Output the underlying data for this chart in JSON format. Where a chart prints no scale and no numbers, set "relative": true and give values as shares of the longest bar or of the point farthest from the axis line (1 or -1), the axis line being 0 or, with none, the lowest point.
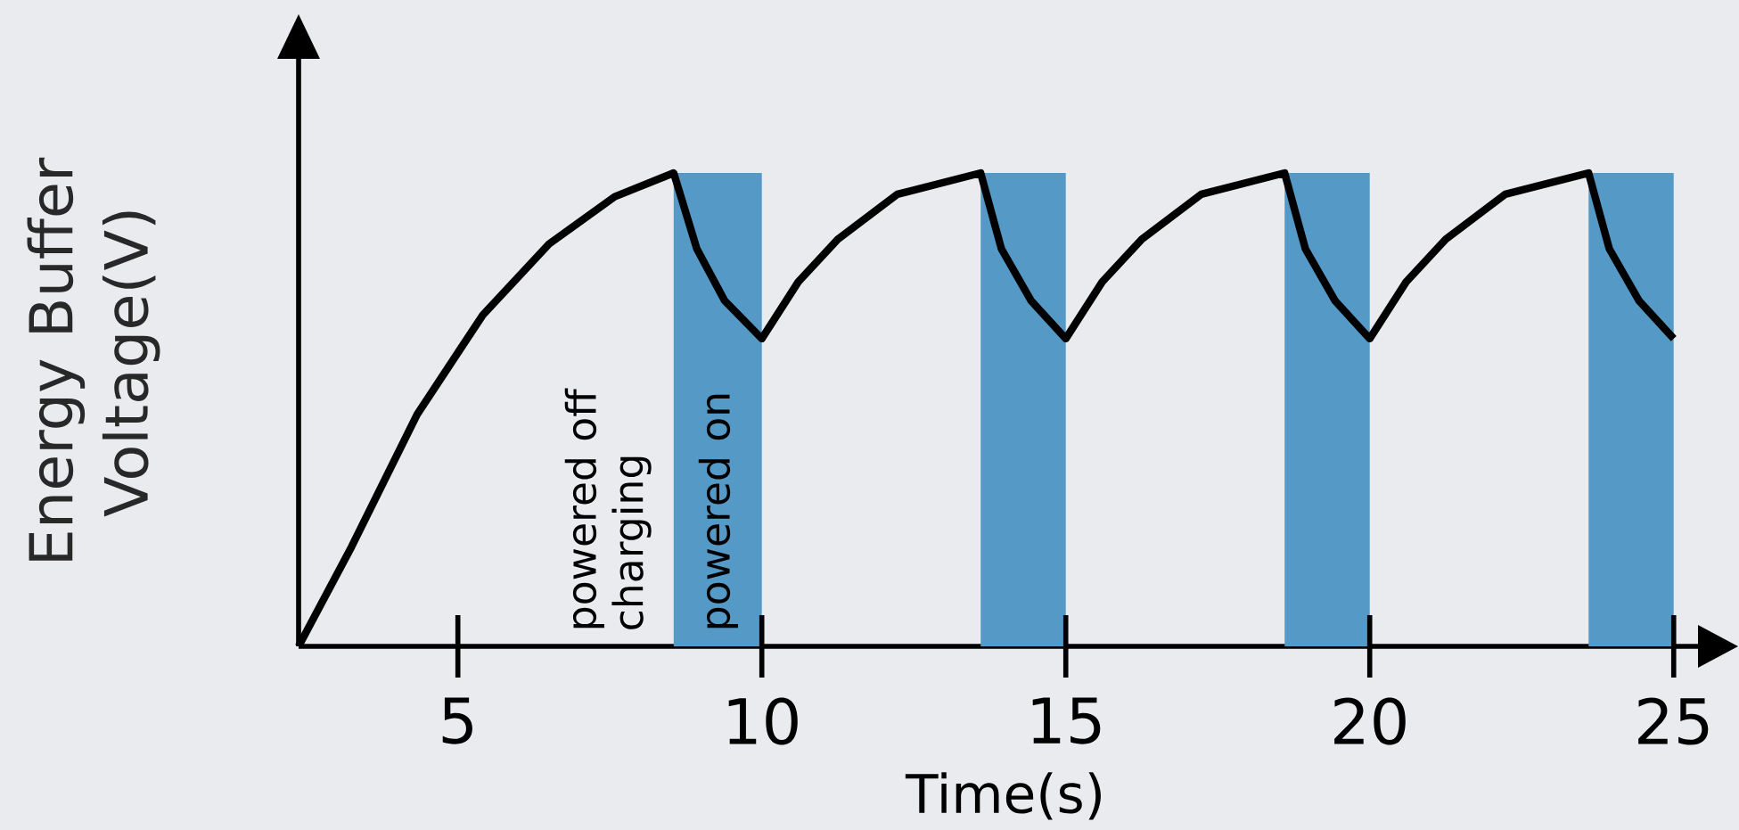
{
  "chart_data": {
    "type": "line",
    "relative": true,
    "xlabel": "Time(s)",
    "ylabel": "Energy Buffer Voltage(V)",
    "xlim": [
      2.38,
      25.4
    ],
    "xticks": [
      5,
      10,
      15,
      20,
      25
    ],
    "annotations": [
      "powered off charging",
      "powered on"
    ],
    "bands": [
      {
        "axis": "x",
        "from": 8.55,
        "to": 10,
        "color": "#5599c7"
      },
      {
        "axis": "x",
        "from": 13.6,
        "to": 15,
        "color": "#5599c7"
      },
      {
        "axis": "x",
        "from": 18.6,
        "to": 20,
        "color": "#5599c7"
      },
      {
        "axis": "x",
        "from": 23.6,
        "to": 25,
        "color": "#5599c7"
      }
    ],
    "series": [
      {
        "color": "#000000",
        "x": [
          2.38,
          3.25,
          4.33,
          5.41,
          6.5,
          7.58,
          8.55,
          8.93,
          9.39,
          10,
          10.6,
          11.25,
          12.23,
          13.6,
          13.94,
          14.43,
          15,
          15.6,
          16.25,
          17.23,
          18.6,
          18.94,
          19.43,
          20,
          20.6,
          21.25,
          22.23,
          23.6,
          23.94,
          24.43,
          25
        ],
        "values": [
          0,
          0.21,
          0.49,
          0.7,
          0.85,
          0.95,
          1,
          0.84,
          0.73,
          0.65,
          0.77,
          0.86,
          0.955,
          1,
          0.84,
          0.73,
          0.65,
          0.77,
          0.86,
          0.955,
          1,
          0.84,
          0.73,
          0.65,
          0.77,
          0.86,
          0.955,
          1,
          0.84,
          0.73,
          0.65
        ]
      }
    ]
  }
}
